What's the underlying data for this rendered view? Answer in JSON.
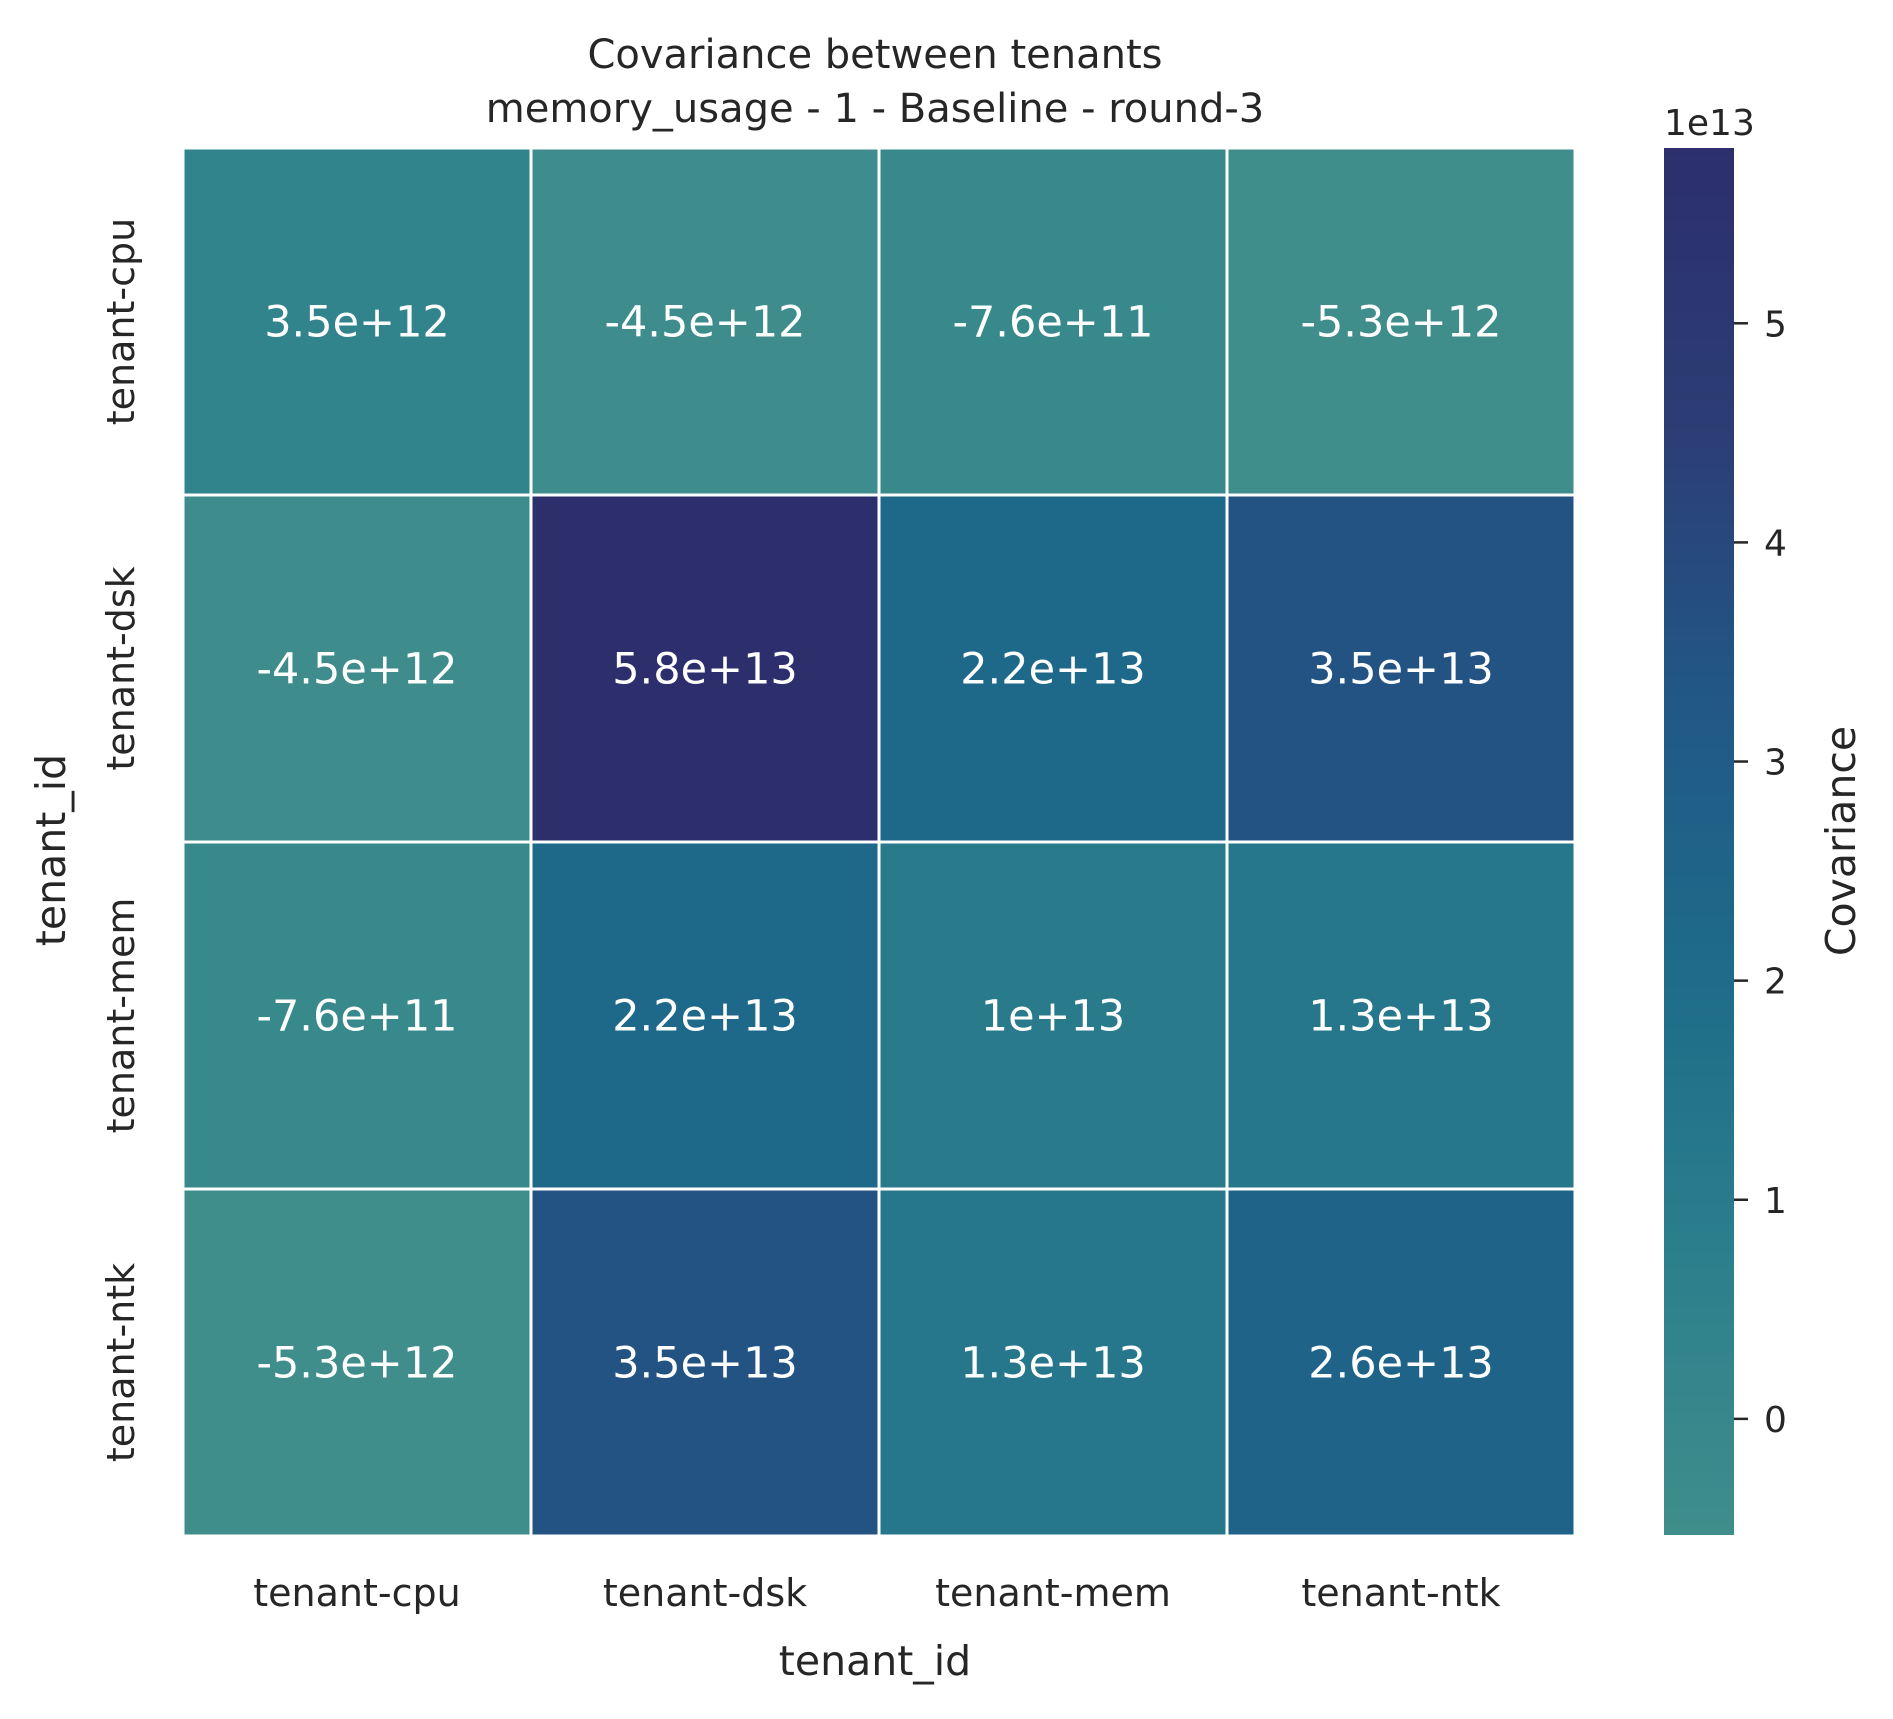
{
  "chart_data": {
    "type": "heatmap",
    "title": "Covariance between tenants",
    "subtitle": "memory_usage - 1 - Baseline - round-3",
    "xlabel": "tenant_id",
    "ylabel": "tenant_id",
    "x_categories": [
      "tenant-cpu",
      "tenant-dsk",
      "tenant-mem",
      "tenant-ntk"
    ],
    "y_categories": [
      "tenant-cpu",
      "tenant-dsk",
      "tenant-mem",
      "tenant-ntk"
    ],
    "values": [
      [
        3500000000000.0,
        -4500000000000.0,
        -760000000000.0,
        -5300000000000.0
      ],
      [
        -4500000000000.0,
        58000000000000.0,
        22000000000000.0,
        35000000000000.0
      ],
      [
        -760000000000.0,
        22000000000000.0,
        10000000000000.0,
        13000000000000.0
      ],
      [
        -5300000000000.0,
        35000000000000.0,
        13000000000000.0,
        26000000000000.0
      ]
    ],
    "annotations": [
      [
        "3.5e+12",
        "-4.5e+12",
        "-7.6e+11",
        "-5.3e+12"
      ],
      [
        "-4.5e+12",
        "5.8e+13",
        "2.2e+13",
        "3.5e+13"
      ],
      [
        "-7.6e+11",
        "2.2e+13",
        "1e+13",
        "1.3e+13"
      ],
      [
        "-5.3e+12",
        "3.5e+13",
        "1.3e+13",
        "2.6e+13"
      ]
    ],
    "colorbar": {
      "label": "Covariance",
      "offset_text": "1e13",
      "scale": 10000000000000.0,
      "range": [
        -0.53,
        5.8
      ],
      "ticks": [
        0,
        1,
        2,
        3,
        4,
        5
      ],
      "tick_labels": [
        "0",
        "1",
        "2",
        "3",
        "4",
        "5"
      ],
      "colormap": "crest",
      "colors": [
        "#3f8e8c",
        "#2c7f8c",
        "#1e6c8a",
        "#215886",
        "#2c3d74",
        "#2c2f6c"
      ]
    },
    "grid": false,
    "cell_separator_color": "#ffffff"
  }
}
